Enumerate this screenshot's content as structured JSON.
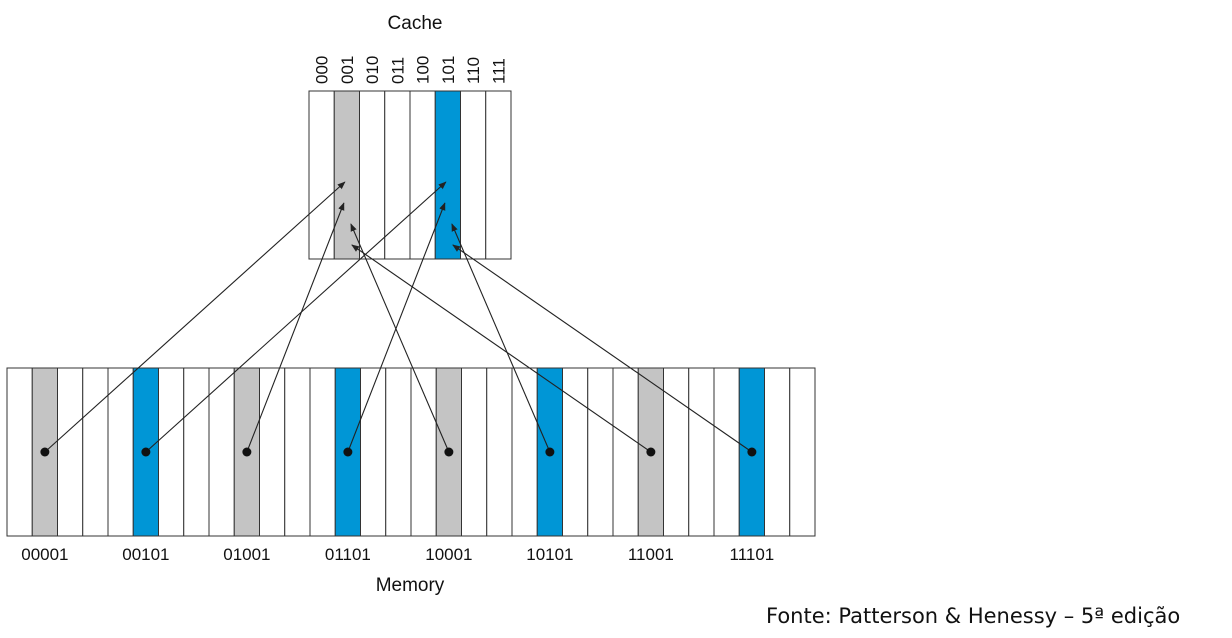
{
  "cache": {
    "title": "Cache",
    "indices": [
      "000",
      "001",
      "010",
      "011",
      "100",
      "101",
      "110",
      "111"
    ]
  },
  "memory": {
    "title": "Memory",
    "addresses": [
      "00001",
      "00101",
      "01001",
      "01101",
      "10001",
      "10101",
      "11001",
      "11101"
    ]
  },
  "source": "Fonte: Patterson & Henessy – 5ª edição",
  "colors": {
    "gray": "#c4c4c4",
    "blue": "#0096d6",
    "line": "#222222",
    "border": "#333333"
  },
  "highlights": {
    "cache_slots": [
      {
        "index": "001",
        "color": "gray"
      },
      {
        "index": "101",
        "color": "blue"
      }
    ],
    "memory_blocks": [
      {
        "address": "00001",
        "color": "gray"
      },
      {
        "address": "00101",
        "color": "blue"
      },
      {
        "address": "01001",
        "color": "gray"
      },
      {
        "address": "01101",
        "color": "blue"
      },
      {
        "address": "10001",
        "color": "gray"
      },
      {
        "address": "10101",
        "color": "blue"
      },
      {
        "address": "11001",
        "color": "gray"
      },
      {
        "address": "11101",
        "color": "blue"
      }
    ]
  },
  "mappings": [
    {
      "from": "00001",
      "to": "001"
    },
    {
      "from": "00101",
      "to": "101"
    },
    {
      "from": "01001",
      "to": "001"
    },
    {
      "from": "01101",
      "to": "101"
    },
    {
      "from": "10001",
      "to": "001"
    },
    {
      "from": "10101",
      "to": "101"
    },
    {
      "from": "11001",
      "to": "001"
    },
    {
      "from": "11101",
      "to": "101"
    }
  ]
}
